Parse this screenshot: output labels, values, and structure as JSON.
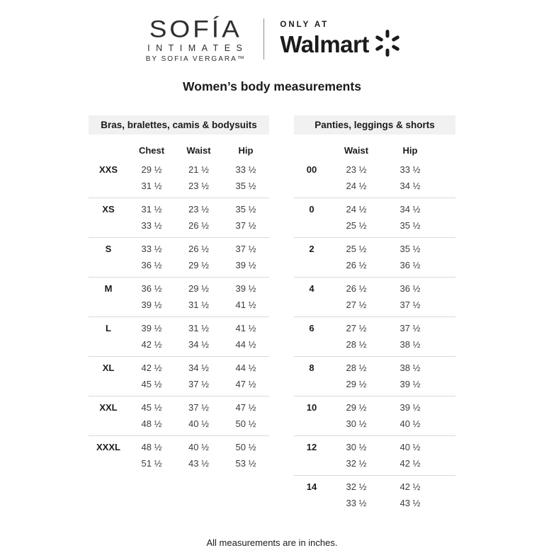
{
  "header": {
    "brand": {
      "name": "SOFÍA",
      "line2": "INTIMATES",
      "line3": "BY SOFIA VERGARA™"
    },
    "retailer": {
      "only_at": "ONLY AT",
      "name": "Walmart",
      "spark_icon": "walmart-spark-icon",
      "spark_color": "#1b1b1b"
    },
    "title": "Women’s body measurements"
  },
  "tables": [
    {
      "title": "Bras, bralettes, camis & bodysuits",
      "columns": [
        "Chest",
        "Waist",
        "Hip"
      ],
      "rows": [
        {
          "size": "XXS",
          "min": [
            "29 ½",
            "21 ½",
            "33 ½"
          ],
          "max": [
            "31 ½",
            "23 ½",
            "35 ½"
          ]
        },
        {
          "size": "XS",
          "min": [
            "31 ½",
            "23 ½",
            "35 ½"
          ],
          "max": [
            "33 ½",
            "26 ½",
            "37 ½"
          ]
        },
        {
          "size": "S",
          "min": [
            "33 ½",
            "26 ½",
            "37 ½"
          ],
          "max": [
            "36 ½",
            "29 ½",
            "39 ½"
          ]
        },
        {
          "size": "M",
          "min": [
            "36 ½",
            "29 ½",
            "39 ½"
          ],
          "max": [
            "39 ½",
            "31 ½",
            "41 ½"
          ]
        },
        {
          "size": "L",
          "min": [
            "39 ½",
            "31 ½",
            "41 ½"
          ],
          "max": [
            "42 ½",
            "34 ½",
            "44 ½"
          ]
        },
        {
          "size": "XL",
          "min": [
            "42 ½",
            "34 ½",
            "44 ½"
          ],
          "max": [
            "45 ½",
            "37 ½",
            "47 ½"
          ]
        },
        {
          "size": "XXL",
          "min": [
            "45 ½",
            "37 ½",
            "47 ½"
          ],
          "max": [
            "48 ½",
            "40 ½",
            "50 ½"
          ]
        },
        {
          "size": "XXXL",
          "min": [
            "48 ½",
            "40 ½",
            "50 ½"
          ],
          "max": [
            "51 ½",
            "43 ½",
            "53 ½"
          ]
        }
      ]
    },
    {
      "title": "Panties, leggings & shorts",
      "columns": [
        "Waist",
        "Hip"
      ],
      "rows": [
        {
          "size": "00",
          "min": [
            "23 ½",
            "33 ½"
          ],
          "max": [
            "24 ½",
            "34 ½"
          ]
        },
        {
          "size": "0",
          "min": [
            "24 ½",
            "34 ½"
          ],
          "max": [
            "25 ½",
            "35 ½"
          ]
        },
        {
          "size": "2",
          "min": [
            "25 ½",
            "35 ½"
          ],
          "max": [
            "26 ½",
            "36 ½"
          ]
        },
        {
          "size": "4",
          "min": [
            "26 ½",
            "36 ½"
          ],
          "max": [
            "27 ½",
            "37 ½"
          ]
        },
        {
          "size": "6",
          "min": [
            "27 ½",
            "37 ½"
          ],
          "max": [
            "28 ½",
            "38 ½"
          ]
        },
        {
          "size": "8",
          "min": [
            "28 ½",
            "38 ½"
          ],
          "max": [
            "29 ½",
            "39 ½"
          ]
        },
        {
          "size": "10",
          "min": [
            "29 ½",
            "39 ½"
          ],
          "max": [
            "30 ½",
            "40 ½"
          ]
        },
        {
          "size": "12",
          "min": [
            "30 ½",
            "40 ½"
          ],
          "max": [
            "32 ½",
            "42 ½"
          ]
        },
        {
          "size": "14",
          "min": [
            "32 ½",
            "42 ½"
          ],
          "max": [
            "33 ½",
            "43 ½"
          ]
        }
      ]
    }
  ],
  "footer": {
    "note": "All measurements are in inches."
  },
  "colors": {
    "text": "#1b1b1b",
    "value_text": "#3d3d3d",
    "table_header_bg": "#f1f1f1",
    "rule": "#d9d9d9",
    "logo_divider": "#8c8c8c"
  }
}
